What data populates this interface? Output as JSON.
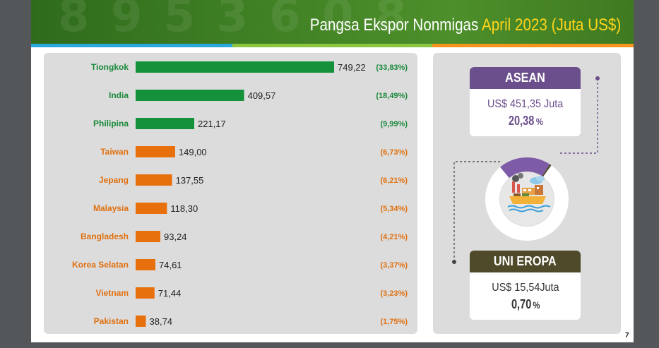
{
  "header": {
    "title_main": "Pangsa Ekspor Nonmigas",
    "title_accent": "April 2023 (Juta US$)"
  },
  "colors": {
    "green": "#14913a",
    "orange": "#e8700c",
    "purple": "#6b4f8c",
    "olive": "#4e4a2a"
  },
  "chart_data": {
    "type": "bar",
    "orientation": "horizontal",
    "categories": [
      "Tiongkok",
      "India",
      "Philipina",
      "Taiwan",
      "Jepang",
      "Malaysia",
      "Bangladesh",
      "Korea Selatan",
      "Vietnam",
      "Pakistan"
    ],
    "values": [
      749.22,
      409.57,
      221.17,
      149.0,
      137.55,
      118.3,
      93.24,
      74.61,
      71.44,
      38.74
    ],
    "value_labels": [
      "749,22",
      "409,57",
      "221,17",
      "149,00",
      "137,55",
      "118,30",
      "93,24",
      "74,61",
      "71,44",
      "38,74"
    ],
    "shares": [
      "(33,83%)",
      "(18,49%)",
      "(9,99%)",
      "(6,73%)",
      "(6,21%)",
      "(5,34%)",
      "(4,21%)",
      "(3,37%)",
      "(3,23%)",
      "(1,75%)"
    ],
    "bar_colors": [
      "#14913a",
      "#14913a",
      "#14913a",
      "#e8700c",
      "#e8700c",
      "#e8700c",
      "#e8700c",
      "#e8700c",
      "#e8700c",
      "#e8700c"
    ],
    "xlim": [
      0,
      760
    ],
    "grid": false,
    "legend": "none"
  },
  "regions": {
    "asean": {
      "title": "ASEAN",
      "amount": "US$ 451,35 Juta",
      "pct_num": "20,38",
      "pct_sign": "%",
      "share": 20.38
    },
    "eu": {
      "title": "UNI EROPA",
      "amount": "US$ 15,54Juta",
      "pct_num": "0,70",
      "pct_sign": "%",
      "share": 0.7
    }
  },
  "page_number": "7"
}
